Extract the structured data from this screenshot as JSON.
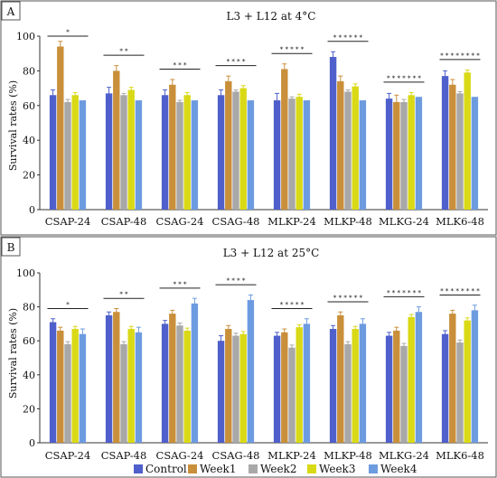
{
  "colors": {
    "Control": "#4f5fcb",
    "Week1": "#c98f3a",
    "Week2": "#a8a8a8",
    "Week3": "#d9d916",
    "Week4": "#6d9be0"
  },
  "legend": {
    "entries": [
      "Control",
      "Week1",
      "Week2",
      "Week3",
      "Week4"
    ],
    "position": "bottom"
  },
  "chart_data": [
    {
      "type": "bar",
      "panel_label": "A",
      "title": "L3 + L12 at 4°C",
      "ylabel": "Survival rates (%)",
      "xlabel": "",
      "ylim": [
        0,
        100
      ],
      "yticks": [
        0,
        20,
        40,
        60,
        80,
        100
      ],
      "grid": false,
      "categories": [
        "CSAP-24",
        "CSAP-48",
        "CSAG-24",
        "CSAG-48",
        "MLKP-24",
        "MLKP-48",
        "MLKG-24",
        "MLK6-48"
      ],
      "significance": [
        "*",
        "* *",
        "* * *",
        "* * * *",
        "* * * * *",
        "* * * * * *",
        "* * * * * * *",
        "* * * * * * * *"
      ],
      "series": [
        {
          "name": "Control",
          "values": [
            66,
            67,
            66,
            66,
            63,
            88,
            64,
            77
          ],
          "errors": [
            3,
            3.5,
            3,
            3,
            4,
            3,
            3,
            3
          ]
        },
        {
          "name": "Week1",
          "values": [
            94,
            80,
            72,
            74,
            81,
            74,
            62,
            72
          ],
          "errors": [
            3,
            3,
            3,
            3,
            3,
            3,
            4,
            3
          ]
        },
        {
          "name": "Week2",
          "values": [
            62,
            66,
            62,
            68,
            64,
            68,
            62,
            67
          ],
          "errors": [
            1.5,
            1,
            1,
            1,
            1,
            1,
            1.5,
            1
          ]
        },
        {
          "name": "Week3",
          "values": [
            66,
            69,
            66,
            70,
            65,
            71,
            66,
            79
          ],
          "errors": [
            1.5,
            1.5,
            1.5,
            1.5,
            1.5,
            1.5,
            1.5,
            1.5
          ]
        },
        {
          "name": "Week4",
          "values": [
            63,
            63,
            63,
            63,
            63,
            63,
            65,
            65
          ],
          "errors": [
            0,
            0,
            0,
            0,
            0,
            0,
            0,
            0
          ]
        }
      ]
    },
    {
      "type": "bar",
      "panel_label": "B",
      "title": "L3 + L12 at 25°C",
      "ylabel": "Survival rates (%)",
      "xlabel": "",
      "ylim": [
        0,
        100
      ],
      "yticks": [
        0,
        20,
        40,
        60,
        80,
        100
      ],
      "grid": false,
      "categories": [
        "CSAP-24",
        "CSAP-48",
        "CSAG-24",
        "CSAG-48",
        "MLKP-24",
        "MLKP-48",
        "MLKG-24",
        "MLK6-48"
      ],
      "significance": [
        "*",
        "* *",
        "* * *",
        "* * * *",
        "* * * * *",
        "* * * * * *",
        "* * * * * * *",
        "* * * * * * * *"
      ],
      "series": [
        {
          "name": "Control",
          "values": [
            71,
            75,
            70,
            60,
            63,
            67,
            63,
            64
          ],
          "errors": [
            2,
            2,
            2,
            3,
            2,
            2,
            2,
            2
          ]
        },
        {
          "name": "Week1",
          "values": [
            66,
            77,
            76,
            67,
            65,
            75,
            66,
            76
          ],
          "errors": [
            2,
            2,
            2,
            2,
            2,
            2,
            2,
            2
          ]
        },
        {
          "name": "Week2",
          "values": [
            58,
            58,
            69,
            63,
            56,
            58,
            57,
            59
          ],
          "errors": [
            1.5,
            1.5,
            1.5,
            1.5,
            1.5,
            1.5,
            1.5,
            1.5
          ]
        },
        {
          "name": "Week3",
          "values": [
            67,
            67,
            66,
            64,
            68,
            67,
            74,
            72
          ],
          "errors": [
            1.5,
            1.5,
            1.5,
            1.5,
            1.5,
            1.5,
            1.5,
            1.5
          ]
        },
        {
          "name": "Week4",
          "values": [
            64,
            65,
            82,
            84,
            70,
            70,
            77,
            78
          ],
          "errors": [
            3,
            3,
            3,
            3,
            3,
            3,
            3,
            3
          ]
        }
      ]
    }
  ]
}
